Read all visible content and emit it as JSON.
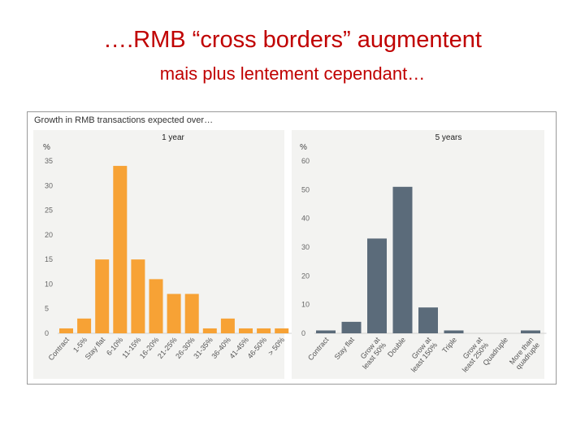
{
  "slide": {
    "title": "….RMB “cross borders” augmentent",
    "subtitle": "mais plus lentement cependant…"
  },
  "figure": {
    "caption": "Growth in RMB transactions expected over…"
  },
  "chart_data": [
    {
      "type": "bar",
      "title": "1 year",
      "ylabel": "%",
      "ylim": [
        0,
        35
      ],
      "yticks": [
        0,
        5,
        10,
        15,
        20,
        25,
        30,
        35
      ],
      "color": "#f7a235",
      "grid": false,
      "categories": [
        "Contract",
        "1-5%",
        "Stay flat",
        "6-10%",
        "11-15%",
        "16-20%",
        "21-25%",
        "26-30%",
        "31-35%",
        "36-40%",
        "41-45%",
        "46-50%",
        "> 50%"
      ],
      "values": [
        1,
        3,
        15,
        34,
        15,
        11,
        8,
        8,
        1,
        3,
        1,
        1,
        1
      ]
    },
    {
      "type": "bar",
      "title": "5 years",
      "ylabel": "%",
      "ylim": [
        0,
        60
      ],
      "yticks": [
        0,
        10,
        20,
        30,
        40,
        50,
        60
      ],
      "color": "#5b6b7a",
      "grid": false,
      "categories": [
        "Contract",
        "Stay flat",
        "Grow at least 50%",
        "Double",
        "Grow at least 150%",
        "Triple",
        "Grow at least 250%",
        "Quadruple",
        "More than quadruple"
      ],
      "values": [
        1,
        4,
        33,
        51,
        9,
        1,
        0,
        0,
        1
      ]
    }
  ]
}
